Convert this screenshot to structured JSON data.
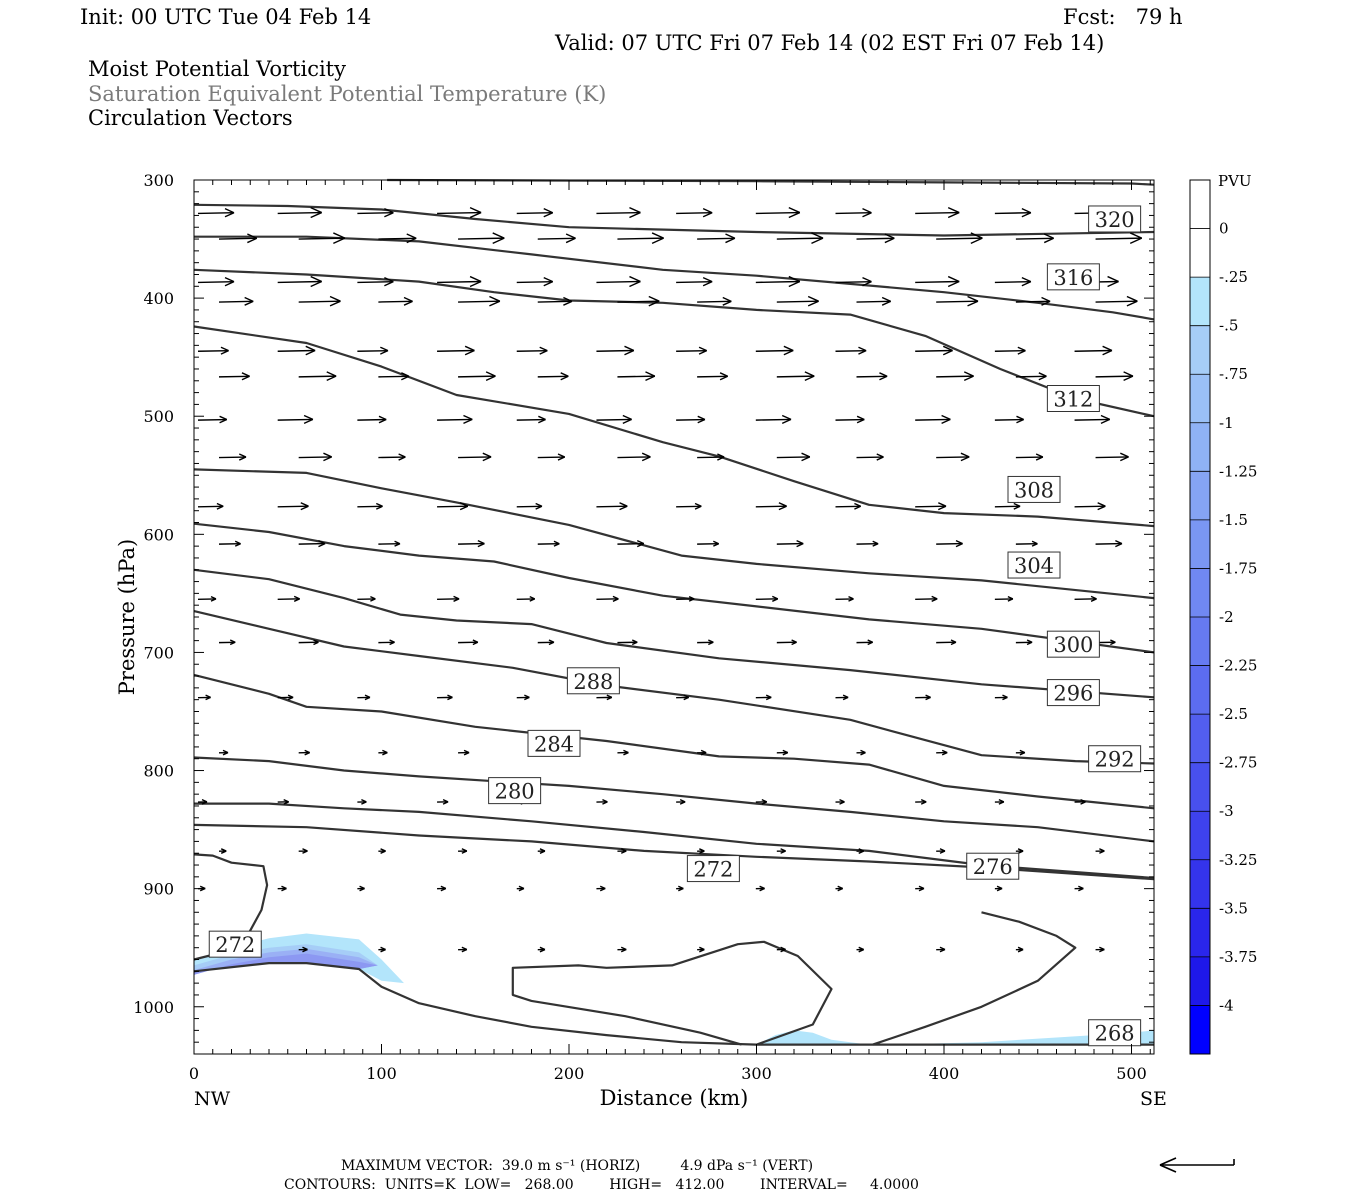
{
  "header": {
    "init": "Init: 00 UTC Tue 04 Feb 14",
    "fcst": "Fcst:   79 h",
    "valid": "Valid: 07 UTC Fri 07 Feb 14 (02 EST Fri 07 Feb 14)",
    "field1": "Moist Potential Vorticity",
    "field2": "Saturation Equivalent Potential Temperature (K)",
    "field3": "Circulation Vectors"
  },
  "footer": {
    "max_vector": "MAXIMUM VECTOR:  39.0 m s⁻¹ (HORIZ)         4.9 dPa s⁻¹ (VERT)",
    "contours": "CONTOURS:  UNITS=K  LOW=   268.00        HIGH=   412.00        INTERVAL=     4.0000"
  },
  "colorbar": {
    "unit": "PVU",
    "labels": [
      "0",
      "-.25",
      "-.5",
      "-.75",
      "-1",
      "-1.25",
      "-1.5",
      "-1.75",
      "-2",
      "-2.25",
      "-2.5",
      "-2.75",
      "-3",
      "-3.25",
      "-3.5",
      "-3.75",
      "-4"
    ],
    "colors": [
      "#ffffff",
      "#b3e5fb",
      "#a6cdf7",
      "#9ac0f6",
      "#8fb2f5",
      "#85a4f4",
      "#7a96f3",
      "#7088f2",
      "#667af1",
      "#5c6cf0",
      "#525eef",
      "#4850ee",
      "#3e42ed",
      "#3434ec",
      "#2a26eb",
      "#1e18ea",
      "#0000ff"
    ]
  },
  "chart_data": {
    "type": "cross-section",
    "xlabel": "Distance (km)",
    "ylabel": "Pressure (hPa)",
    "xlim": [
      0,
      512
    ],
    "ylim": [
      1040,
      300
    ],
    "x_ticks": [
      0,
      100,
      200,
      300,
      400,
      500
    ],
    "y_ticks": [
      300,
      400,
      500,
      600,
      700,
      800,
      900,
      1000
    ],
    "x_end_labels": {
      "left": "NW",
      "right": "SE"
    },
    "contours": [
      {
        "value": 320,
        "label": "320",
        "points": [
          [
            103,
            300
          ],
          [
            300,
            301
          ],
          [
            400,
            302
          ],
          [
            500,
            303
          ],
          [
            512,
            304
          ]
        ]
      },
      {
        "value": 320,
        "label": "320",
        "points": [
          [
            0,
            321
          ],
          [
            50,
            322
          ],
          [
            100,
            325
          ],
          [
            150,
            333
          ],
          [
            200,
            340
          ],
          [
            300,
            344
          ],
          [
            400,
            347
          ],
          [
            512,
            344
          ]
        ],
        "label_at": [
          491,
          333
        ]
      },
      {
        "value": 316,
        "label": "316",
        "points": [
          [
            0,
            348
          ],
          [
            60,
            348
          ],
          [
            120,
            352
          ],
          [
            180,
            363
          ],
          [
            250,
            376
          ],
          [
            300,
            381
          ],
          [
            350,
            388
          ],
          [
            400,
            395
          ],
          [
            450,
            404
          ],
          [
            490,
            412
          ],
          [
            512,
            418
          ]
        ],
        "label_at": [
          469,
          382
        ]
      },
      {
        "value": 312,
        "label": "312",
        "points": [
          [
            0,
            376
          ],
          [
            60,
            380
          ],
          [
            120,
            386
          ],
          [
            160,
            395
          ],
          [
            200,
            402
          ],
          [
            250,
            404
          ],
          [
            300,
            410
          ],
          [
            350,
            414
          ],
          [
            390,
            432
          ],
          [
            430,
            460
          ],
          [
            470,
            485
          ],
          [
            512,
            500
          ]
        ],
        "label_at": [
          469,
          485
        ]
      },
      {
        "value": 308,
        "label": "308",
        "points": [
          [
            0,
            424
          ],
          [
            60,
            438
          ],
          [
            100,
            458
          ],
          [
            140,
            482
          ],
          [
            200,
            498
          ],
          [
            250,
            522
          ],
          [
            280,
            534
          ],
          [
            320,
            555
          ],
          [
            360,
            575
          ],
          [
            400,
            582
          ],
          [
            450,
            585
          ],
          [
            512,
            593
          ]
        ],
        "label_at": [
          448,
          562
        ]
      },
      {
        "value": 304,
        "label": "304",
        "points": [
          [
            0,
            545
          ],
          [
            60,
            548
          ],
          [
            100,
            561
          ],
          [
            140,
            573
          ],
          [
            200,
            592
          ],
          [
            260,
            618
          ],
          [
            300,
            625
          ],
          [
            360,
            633
          ],
          [
            420,
            639
          ],
          [
            512,
            654
          ]
        ],
        "label_at": [
          448,
          626
        ]
      },
      {
        "value": 300,
        "label": "300",
        "points": [
          [
            0,
            591
          ],
          [
            40,
            598
          ],
          [
            80,
            610
          ],
          [
            120,
            618
          ],
          [
            160,
            623
          ],
          [
            200,
            637
          ],
          [
            250,
            652
          ],
          [
            300,
            661
          ],
          [
            360,
            672
          ],
          [
            420,
            680
          ],
          [
            512,
            700
          ]
        ],
        "label_at": [
          469,
          693
        ]
      },
      {
        "value": 296,
        "label": "296",
        "points": [
          [
            0,
            630
          ],
          [
            40,
            638
          ],
          [
            80,
            654
          ],
          [
            110,
            668
          ],
          [
            140,
            673
          ],
          [
            180,
            676
          ],
          [
            220,
            692
          ],
          [
            280,
            705
          ],
          [
            350,
            715
          ],
          [
            420,
            727
          ],
          [
            512,
            738
          ]
        ],
        "label_at": [
          469,
          734
        ]
      },
      {
        "value": 292,
        "label": "292",
        "points": [
          [
            0,
            665
          ],
          [
            40,
            680
          ],
          [
            80,
            695
          ],
          [
            120,
            703
          ],
          [
            170,
            713
          ],
          [
            220,
            728
          ],
          [
            280,
            740
          ],
          [
            350,
            757
          ],
          [
            380,
            770
          ],
          [
            420,
            787
          ],
          [
            470,
            792
          ],
          [
            512,
            794
          ]
        ],
        "label_at": [
          491,
          790
        ]
      },
      {
        "value": 288,
        "label": "288",
        "points": [
          [
            0,
            719
          ],
          [
            40,
            735
          ],
          [
            60,
            746
          ],
          [
            100,
            750
          ],
          [
            150,
            763
          ],
          [
            220,
            775
          ],
          [
            280,
            788
          ],
          [
            320,
            790
          ],
          [
            360,
            795
          ],
          [
            400,
            813
          ],
          [
            450,
            822
          ],
          [
            512,
            832
          ]
        ],
        "label_at": [
          213,
          724
        ]
      },
      {
        "value": 284,
        "label": "284",
        "points": [
          [
            0,
            789
          ],
          [
            40,
            792
          ],
          [
            80,
            800
          ],
          [
            120,
            805
          ],
          [
            160,
            809
          ],
          [
            200,
            813
          ],
          [
            250,
            820
          ],
          [
            300,
            828
          ],
          [
            350,
            835
          ],
          [
            400,
            843
          ],
          [
            450,
            848
          ],
          [
            512,
            860
          ]
        ],
        "label_at": [
          192,
          777
        ]
      },
      {
        "value": 280,
        "label": "280",
        "points": [
          [
            0,
            828
          ],
          [
            40,
            828
          ],
          [
            80,
            832
          ],
          [
            120,
            835
          ],
          [
            180,
            843
          ],
          [
            240,
            852
          ],
          [
            300,
            862
          ],
          [
            360,
            868
          ],
          [
            420,
            880
          ],
          [
            512,
            891
          ]
        ],
        "label_at": [
          171,
          817
        ]
      },
      {
        "value": 276,
        "label": "276",
        "points": [
          [
            0,
            846
          ],
          [
            60,
            848
          ],
          [
            120,
            855
          ],
          [
            180,
            860
          ],
          [
            240,
            868
          ],
          [
            300,
            873
          ],
          [
            360,
            877
          ],
          [
            420,
            882
          ],
          [
            512,
            892
          ]
        ],
        "label_at": [
          426,
          881
        ]
      },
      {
        "value": 272,
        "label": "272",
        "points": [
          [
            0,
            871
          ],
          [
            10,
            872
          ],
          [
            20,
            878
          ],
          [
            37,
            881
          ],
          [
            39,
            897
          ],
          [
            36,
            918
          ],
          [
            25,
            950
          ],
          [
            0,
            960
          ]
        ],
        "label_at": [
          22,
          947
        ]
      },
      {
        "value": 272,
        "label": "272",
        "points": [
          [
            300,
            1032
          ],
          [
            330,
            1015
          ],
          [
            340,
            985
          ],
          [
            322,
            957
          ],
          [
            304,
            945
          ],
          [
            290,
            947
          ],
          [
            255,
            965
          ],
          [
            220,
            967
          ],
          [
            205,
            965
          ],
          [
            170,
            967
          ],
          [
            170,
            990
          ],
          [
            180,
            995
          ],
          [
            230,
            1008
          ],
          [
            270,
            1022
          ],
          [
            292,
            1032
          ]
        ],
        "label_at": [
          277,
          883
        ]
      },
      {
        "value": 276,
        "label": "276",
        "points": [
          [
            362,
            1032
          ],
          [
            390,
            1017
          ],
          [
            420,
            1000
          ],
          [
            450,
            978
          ],
          [
            470,
            950
          ],
          [
            460,
            940
          ],
          [
            440,
            928
          ],
          [
            420,
            920
          ]
        ],
        "label_at": [
          426,
          881
        ]
      },
      {
        "value": 268,
        "label": "268",
        "points": [
          [
            0,
            970
          ],
          [
            40,
            963
          ],
          [
            60,
            963
          ],
          [
            88,
            968
          ],
          [
            100,
            983
          ],
          [
            120,
            997
          ],
          [
            150,
            1008
          ],
          [
            180,
            1017
          ],
          [
            220,
            1024
          ],
          [
            260,
            1030
          ],
          [
            300,
            1032
          ],
          [
            400,
            1032
          ],
          [
            512,
            1032
          ]
        ],
        "label_at": [
          491,
          1022
        ]
      }
    ],
    "contour_labels": [
      "320",
      "316",
      "312",
      "308",
      "304",
      "300",
      "296",
      "292",
      "288",
      "284",
      "280",
      "276",
      "272",
      "268"
    ],
    "pv_shading": [
      {
        "value": -1.0,
        "points": [
          [
            0,
            961
          ],
          [
            20,
            950
          ],
          [
            40,
            942
          ],
          [
            60,
            938
          ],
          [
            88,
            943
          ],
          [
            100,
            960
          ],
          [
            112,
            980
          ],
          [
            100,
            978
          ],
          [
            88,
            968
          ],
          [
            60,
            963
          ],
          [
            40,
            963
          ],
          [
            0,
            970
          ]
        ]
      },
      {
        "value": -0.25,
        "points": [
          [
            300,
            1032
          ],
          [
            310,
            1024
          ],
          [
            320,
            1020
          ],
          [
            330,
            1022
          ],
          [
            340,
            1028
          ],
          [
            350,
            1030
          ],
          [
            360,
            1032
          ]
        ]
      },
      {
        "value": -0.25,
        "points": [
          [
            370,
            1032
          ],
          [
            420,
            1030
          ],
          [
            460,
            1026
          ],
          [
            500,
            1022
          ],
          [
            512,
            1020
          ],
          [
            512,
            1032
          ]
        ]
      }
    ],
    "vectors_note": "circulation vectors (u,w) at grid points; eastward flow strongest aloft",
    "vector_rows": [
      {
        "p": 330,
        "len": 40
      },
      {
        "p": 350,
        "len": 42
      },
      {
        "p": 385,
        "len": 40
      },
      {
        "p": 405,
        "len": 38
      },
      {
        "p": 445,
        "len": 34
      },
      {
        "p": 465,
        "len": 34
      },
      {
        "p": 505,
        "len": 32
      },
      {
        "p": 535,
        "len": 30
      },
      {
        "p": 575,
        "len": 28
      },
      {
        "p": 610,
        "len": 24
      },
      {
        "p": 655,
        "len": 20
      },
      {
        "p": 690,
        "len": 18
      },
      {
        "p": 740,
        "len": 14
      },
      {
        "p": 785,
        "len": 10
      },
      {
        "p": 825,
        "len": 10
      },
      {
        "p": 870,
        "len": 8
      },
      {
        "p": 900,
        "len": 8
      },
      {
        "p": 950,
        "len": 8
      }
    ]
  }
}
